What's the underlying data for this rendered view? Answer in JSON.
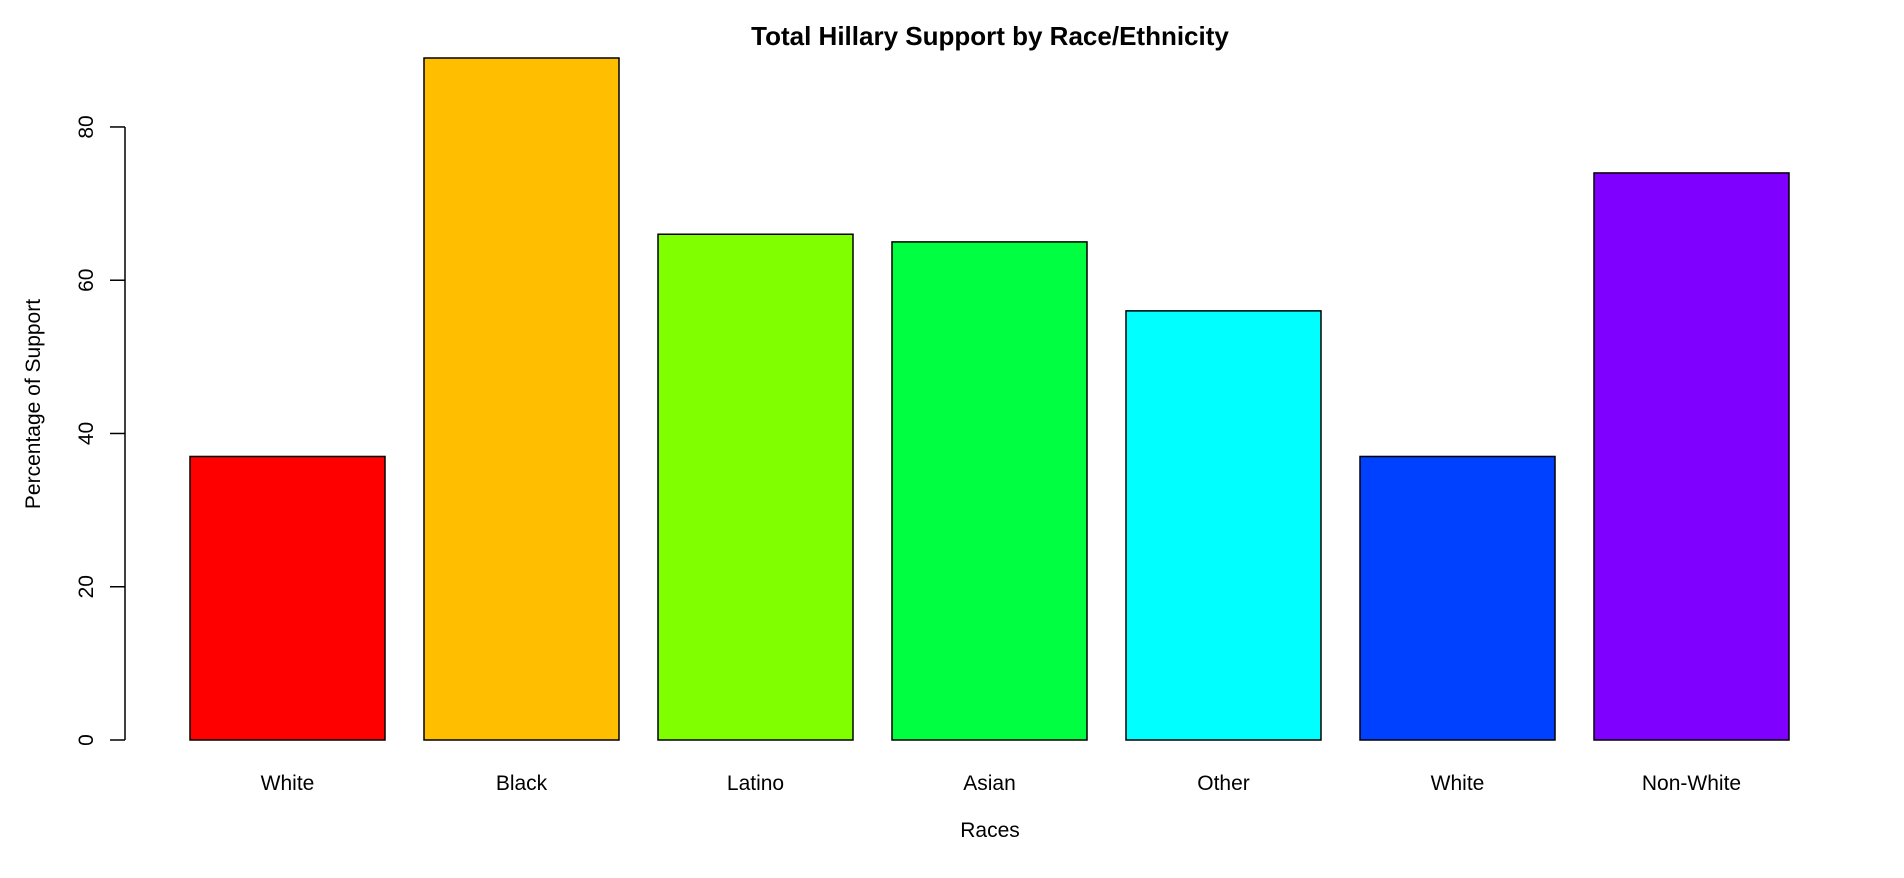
{
  "chart_data": {
    "type": "bar",
    "title": "Total Hillary Support by Race/Ethnicity",
    "xlabel": "Races",
    "ylabel": "Percentage of Support",
    "categories": [
      "White",
      "Black",
      "Latino",
      "Asian",
      "Other",
      "White",
      "Non-White"
    ],
    "values": [
      37,
      89,
      66,
      65,
      56,
      37,
      74
    ],
    "colors": [
      "#FF0000",
      "#FFBF00",
      "#80FF00",
      "#00FF40",
      "#00FFFF",
      "#0040FF",
      "#8000FF"
    ],
    "yticks": [
      0,
      20,
      40,
      60,
      80
    ],
    "ylim": [
      0,
      89
    ],
    "grid": false,
    "legend": "none"
  }
}
